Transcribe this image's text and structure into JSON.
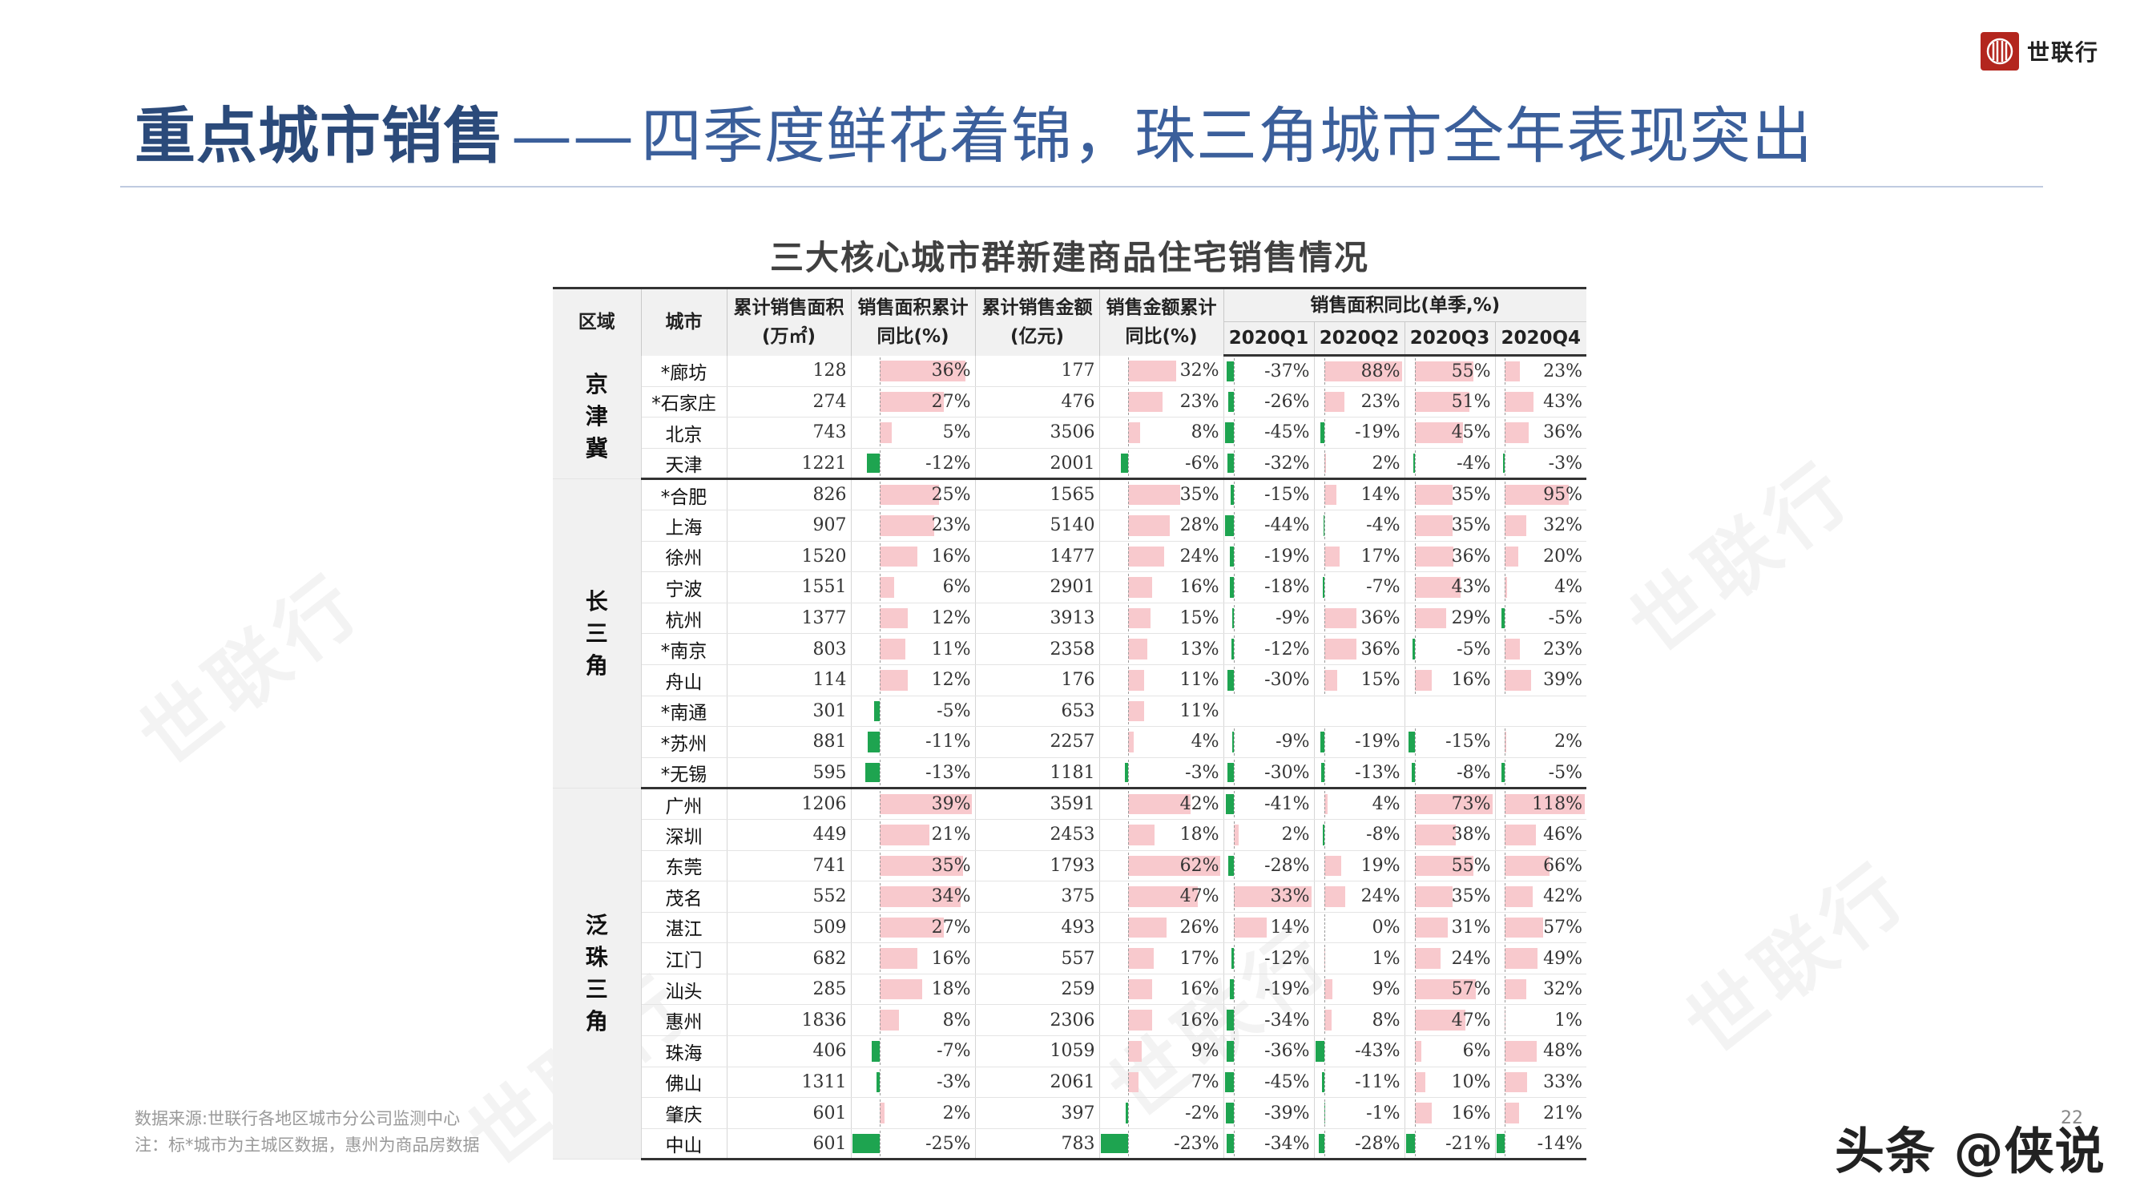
{
  "brand": {
    "name": "世联行",
    "logo_icon": "shilian-logo-icon",
    "logo_color": "#b3261e"
  },
  "page": {
    "title_main": "重点城市销售",
    "title_sep": "——",
    "title_sub": "四季度鲜花着锦，珠三角城市全年表现突出",
    "page_number": "22"
  },
  "table": {
    "caption": "三大核心城市群新建商品住宅销售情况",
    "headers": {
      "region": "区域",
      "city": "城市",
      "area": "累计销售面积(万㎡)",
      "area_yoy": "销售面积累计同比(%)",
      "amount": "累计销售金额(亿元)",
      "amount_yoy": "销售金额累计同比(%)",
      "quarterly_group": "销售面积同比(单季,%)",
      "quarters": [
        "2020Q1",
        "2020Q2",
        "2020Q3",
        "2020Q4"
      ]
    },
    "colors": {
      "positive": "#f8c9cd",
      "negative": "#1ea450"
    },
    "groups": [
      {
        "region": "京津冀",
        "rows": [
          {
            "city": "*廊坊",
            "area": 128,
            "area_yoy": 36,
            "amount": 177,
            "amount_yoy": 32,
            "q": [
              -37,
              88,
              55,
              23
            ]
          },
          {
            "city": "*石家庄",
            "area": 274,
            "area_yoy": 27,
            "amount": 476,
            "amount_yoy": 23,
            "q": [
              -26,
              23,
              51,
              43
            ]
          },
          {
            "city": "北京",
            "area": 743,
            "area_yoy": 5,
            "amount": 3506,
            "amount_yoy": 8,
            "q": [
              -45,
              -19,
              45,
              36
            ]
          },
          {
            "city": "天津",
            "area": 1221,
            "area_yoy": -12,
            "amount": 2001,
            "amount_yoy": -6,
            "q": [
              -32,
              2,
              -4,
              -3
            ]
          }
        ]
      },
      {
        "region": "长三角",
        "rows": [
          {
            "city": "*合肥",
            "area": 826,
            "area_yoy": 25,
            "amount": 1565,
            "amount_yoy": 35,
            "q": [
              -15,
              14,
              35,
              95
            ]
          },
          {
            "city": "上海",
            "area": 907,
            "area_yoy": 23,
            "amount": 5140,
            "amount_yoy": 28,
            "q": [
              -44,
              -4,
              35,
              32
            ]
          },
          {
            "city": "徐州",
            "area": 1520,
            "area_yoy": 16,
            "amount": 1477,
            "amount_yoy": 24,
            "q": [
              -19,
              17,
              36,
              20
            ]
          },
          {
            "city": "宁波",
            "area": 1551,
            "area_yoy": 6,
            "amount": 2901,
            "amount_yoy": 16,
            "q": [
              -18,
              -7,
              43,
              4
            ]
          },
          {
            "city": "杭州",
            "area": 1377,
            "area_yoy": 12,
            "amount": 3913,
            "amount_yoy": 15,
            "q": [
              -9,
              36,
              29,
              -5
            ]
          },
          {
            "city": "*南京",
            "area": 803,
            "area_yoy": 11,
            "amount": 2358,
            "amount_yoy": 13,
            "q": [
              -12,
              36,
              -5,
              23
            ]
          },
          {
            "city": "舟山",
            "area": 114,
            "area_yoy": 12,
            "amount": 176,
            "amount_yoy": 11,
            "q": [
              -30,
              15,
              16,
              39
            ]
          },
          {
            "city": "*南通",
            "area": 301,
            "area_yoy": -5,
            "amount": 653,
            "amount_yoy": 11,
            "q": [
              null,
              null,
              null,
              null
            ]
          },
          {
            "city": "*苏州",
            "area": 881,
            "area_yoy": -11,
            "amount": 2257,
            "amount_yoy": 4,
            "q": [
              -9,
              -19,
              -15,
              2
            ]
          },
          {
            "city": "*无锡",
            "area": 595,
            "area_yoy": -13,
            "amount": 1181,
            "amount_yoy": -3,
            "q": [
              -30,
              -13,
              -8,
              -5
            ]
          }
        ]
      },
      {
        "region": "泛珠三角",
        "rows": [
          {
            "city": "广州",
            "area": 1206,
            "area_yoy": 39,
            "amount": 3591,
            "amount_yoy": 42,
            "q": [
              -41,
              4,
              73,
              118
            ]
          },
          {
            "city": "深圳",
            "area": 449,
            "area_yoy": 21,
            "amount": 2453,
            "amount_yoy": 18,
            "q": [
              2,
              -8,
              38,
              46
            ]
          },
          {
            "city": "东莞",
            "area": 741,
            "area_yoy": 35,
            "amount": 1793,
            "amount_yoy": 62,
            "q": [
              -28,
              19,
              55,
              66
            ]
          },
          {
            "city": "茂名",
            "area": 552,
            "area_yoy": 34,
            "amount": 375,
            "amount_yoy": 47,
            "q": [
              33,
              24,
              35,
              42
            ]
          },
          {
            "city": "湛江",
            "area": 509,
            "area_yoy": 27,
            "amount": 493,
            "amount_yoy": 26,
            "q": [
              14,
              0,
              31,
              57
            ]
          },
          {
            "city": "江门",
            "area": 682,
            "area_yoy": 16,
            "amount": 557,
            "amount_yoy": 17,
            "q": [
              -12,
              1,
              24,
              49
            ]
          },
          {
            "city": "汕头",
            "area": 285,
            "area_yoy": 18,
            "amount": 259,
            "amount_yoy": 16,
            "q": [
              -19,
              9,
              57,
              32
            ]
          },
          {
            "city": "惠州",
            "area": 1836,
            "area_yoy": 8,
            "amount": 2306,
            "amount_yoy": 16,
            "q": [
              -34,
              8,
              47,
              1
            ]
          },
          {
            "city": "珠海",
            "area": 406,
            "area_yoy": -7,
            "amount": 1059,
            "amount_yoy": 9,
            "q": [
              -36,
              -43,
              6,
              48
            ]
          },
          {
            "city": "佛山",
            "area": 1311,
            "area_yoy": -3,
            "amount": 2061,
            "amount_yoy": 7,
            "q": [
              -45,
              -11,
              10,
              33
            ]
          },
          {
            "city": "肇庆",
            "area": 601,
            "area_yoy": 2,
            "amount": 397,
            "amount_yoy": -2,
            "q": [
              -39,
              -1,
              16,
              21
            ]
          },
          {
            "city": "中山",
            "area": 601,
            "area_yoy": -25,
            "amount": 783,
            "amount_yoy": -23,
            "q": [
              -34,
              -28,
              -21,
              -14
            ]
          }
        ]
      }
    ]
  },
  "footnotes": {
    "source": "数据来源:世联行各地区城市分公司监测中心",
    "note": "注：标*城市为主城区数据，惠州为商品房数据"
  },
  "watermark": "世联行",
  "credit": "头条 @侠说"
}
